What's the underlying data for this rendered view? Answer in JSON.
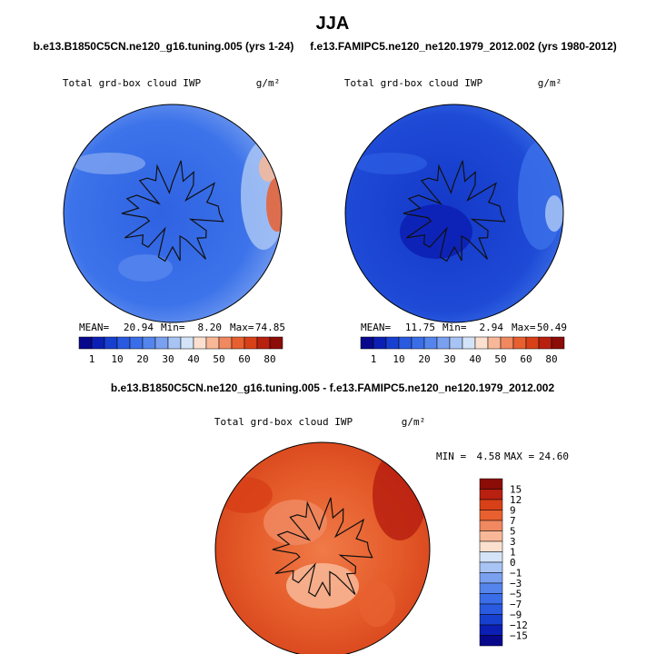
{
  "title": "JJA",
  "panels": [
    {
      "case": "b.e13.B1850C5CN.ne120_g16.tuning.005 (yrs 1-24)",
      "field": "Total grd-box cloud IWP",
      "units": "g/m²",
      "mean_label": "MEAN=",
      "mean": "20.94",
      "min_label": "Min=",
      "min": "8.20",
      "max_label": "Max=",
      "max": "74.85",
      "colorbar_labels": [
        "1",
        "10",
        "20",
        "30",
        "40",
        "50",
        "60",
        "80"
      ]
    },
    {
      "case": "f.e13.FAMIPC5.ne120_ne120.1979_2012.002 (yrs 1980-2012)",
      "field": "Total grd-box cloud IWP",
      "units": "g/m²",
      "mean_label": "MEAN=",
      "mean": "11.75",
      "min_label": "Min=",
      "min": "2.94",
      "max_label": "Max=",
      "max": "50.49",
      "colorbar_labels": [
        "1",
        "10",
        "20",
        "30",
        "40",
        "50",
        "60",
        "80"
      ]
    }
  ],
  "diff": {
    "title": "b.e13.B1850C5CN.ne120_g16.tuning.005 - f.e13.FAMIPC5.ne120_ne120.1979_2012.002",
    "field": "Total grd-box cloud IWP",
    "units": "g/m²",
    "min_label": "MIN =",
    "min": "4.58",
    "max_label": "MAX =",
    "max": "24.60",
    "colorbar_labels": [
      "15",
      "12",
      "9",
      "7",
      "5",
      "3",
      "1",
      "0",
      "−1",
      "−3",
      "−5",
      "−7",
      "−9",
      "−12",
      "−15"
    ]
  }
}
